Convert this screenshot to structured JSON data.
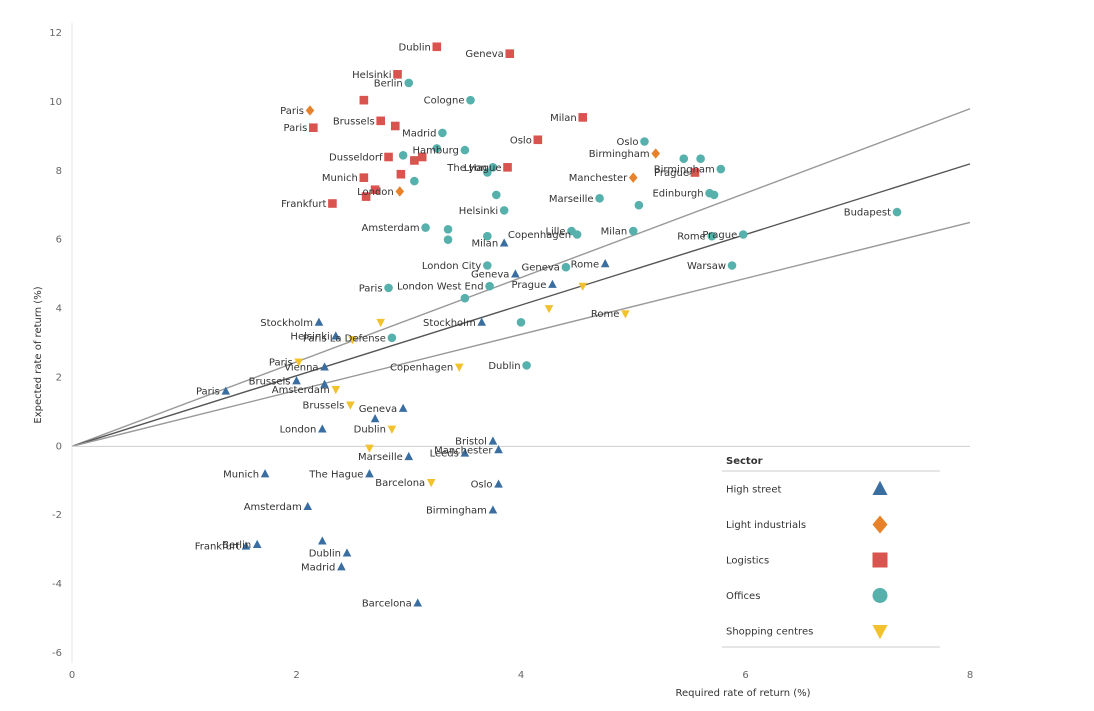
{
  "chart_data": {
    "type": "scatter",
    "title": "",
    "xlabel": "Required rate of return (%)",
    "ylabel": "Expected rate of return (%)",
    "xlim": [
      0,
      8
    ],
    "ylim": [
      -6,
      12
    ],
    "xticks": [
      "0",
      "2",
      "4",
      "6",
      "8"
    ],
    "yticks": [
      "12",
      "10",
      "8",
      "6",
      "4",
      "2",
      "0",
      "-2",
      "-4",
      "-6"
    ],
    "grid": false,
    "zero_line": true,
    "reference_lines": [
      {
        "from": [
          0,
          0
        ],
        "to": [
          8,
          9.8
        ],
        "color": "#999999"
      },
      {
        "from": [
          0,
          0
        ],
        "to": [
          8,
          8.2
        ],
        "color": "#555555"
      },
      {
        "from": [
          0,
          0
        ],
        "to": [
          8,
          6.5
        ],
        "color": "#999999"
      }
    ],
    "legend": {
      "title": "Sector",
      "position": "bottom-right",
      "entries": [
        {
          "label": "High street",
          "shape": "triangle",
          "color": "#3b6ea0"
        },
        {
          "label": "Light industrials",
          "shape": "diamond",
          "color": "#e8822a"
        },
        {
          "label": "Logistics",
          "shape": "square",
          "color": "#d9534f"
        },
        {
          "label": "Offices",
          "shape": "circle",
          "color": "#56b0ac"
        },
        {
          "label": "Shopping centres",
          "shape": "triangle-down",
          "color": "#f2c12e"
        }
      ]
    },
    "series": [
      {
        "name": "High street",
        "shape": "triangle",
        "color": "#3b6ea0",
        "points": [
          {
            "label": "Stockholm",
            "x": 2.2,
            "y": 3.6
          },
          {
            "label": "Helsinki",
            "x": 2.35,
            "y": 3.2
          },
          {
            "label": "Vienna",
            "x": 2.25,
            "y": 2.3
          },
          {
            "label": "Brussels",
            "x": 2.0,
            "y": 1.9
          },
          {
            "label": "",
            "x": 2.25,
            "y": 1.8
          },
          {
            "label": "Paris",
            "x": 1.37,
            "y": 1.6
          },
          {
            "label": "Geneva",
            "x": 2.95,
            "y": 1.1
          },
          {
            "label": "",
            "x": 2.7,
            "y": 0.8
          },
          {
            "label": "London",
            "x": 2.23,
            "y": 0.5
          },
          {
            "label": "Bristol",
            "x": 3.75,
            "y": 0.15
          },
          {
            "label": "Manchester",
            "x": 3.8,
            "y": -0.1
          },
          {
            "label": "Leeds",
            "x": 3.5,
            "y": -0.2
          },
          {
            "label": "Marseille",
            "x": 3.0,
            "y": -0.3
          },
          {
            "label": "The Hague",
            "x": 2.65,
            "y": -0.8
          },
          {
            "label": "Munich",
            "x": 1.72,
            "y": -0.8
          },
          {
            "label": "Oslo",
            "x": 3.8,
            "y": -1.1
          },
          {
            "label": "Birmingham",
            "x": 3.75,
            "y": -1.85
          },
          {
            "label": "Amsterdam",
            "x": 2.1,
            "y": -1.75
          },
          {
            "label": "Berlin",
            "x": 1.65,
            "y": -2.85
          },
          {
            "label": "Frankfurt",
            "x": 1.55,
            "y": -2.9
          },
          {
            "label": "",
            "x": 2.23,
            "y": -2.75
          },
          {
            "label": "Dublin",
            "x": 2.45,
            "y": -3.1
          },
          {
            "label": "Madrid",
            "x": 2.4,
            "y": -3.5
          },
          {
            "label": "Barcelona",
            "x": 3.08,
            "y": -4.55
          },
          {
            "label": "Stockholm",
            "x": 3.65,
            "y": 3.6
          },
          {
            "label": "Geneva",
            "x": 3.95,
            "y": 5.0
          },
          {
            "label": "Prague",
            "x": 4.28,
            "y": 4.7
          },
          {
            "label": "Rome",
            "x": 4.75,
            "y": 5.3
          },
          {
            "label": "Milan",
            "x": 3.85,
            "y": 5.9
          }
        ]
      },
      {
        "name": "Light industrials",
        "shape": "diamond",
        "color": "#e8822a",
        "points": [
          {
            "label": "Paris",
            "x": 2.12,
            "y": 9.75
          },
          {
            "label": "London",
            "x": 2.92,
            "y": 7.4
          },
          {
            "label": "Manchester",
            "x": 5.0,
            "y": 7.8
          },
          {
            "label": "Birmingham",
            "x": 5.2,
            "y": 8.5
          }
        ]
      },
      {
        "name": "Logistics",
        "shape": "square",
        "color": "#d9534f",
        "points": [
          {
            "label": "Dublin",
            "x": 3.25,
            "y": 11.6
          },
          {
            "label": "Geneva",
            "x": 3.9,
            "y": 11.4
          },
          {
            "label": "Helsinki",
            "x": 2.9,
            "y": 10.8
          },
          {
            "label": "",
            "x": 2.6,
            "y": 10.05
          },
          {
            "label": "Paris",
            "x": 2.15,
            "y": 9.25
          },
          {
            "label": "Brussels",
            "x": 2.75,
            "y": 9.45
          },
          {
            "label": "",
            "x": 2.88,
            "y": 9.3
          },
          {
            "label": "Milan",
            "x": 4.55,
            "y": 9.55
          },
          {
            "label": "Oslo",
            "x": 4.15,
            "y": 8.9
          },
          {
            "label": "Dusseldorf",
            "x": 2.82,
            "y": 8.4
          },
          {
            "label": "",
            "x": 3.05,
            "y": 8.3
          },
          {
            "label": "",
            "x": 3.12,
            "y": 8.4
          },
          {
            "label": "The Hague",
            "x": 3.88,
            "y": 8.1
          },
          {
            "label": "Munich",
            "x": 2.6,
            "y": 7.8
          },
          {
            "label": "",
            "x": 2.93,
            "y": 7.9
          },
          {
            "label": "",
            "x": 2.7,
            "y": 7.45
          },
          {
            "label": "",
            "x": 2.62,
            "y": 7.25
          },
          {
            "label": "Frankfurt",
            "x": 2.32,
            "y": 7.05
          },
          {
            "label": "Prague",
            "x": 5.55,
            "y": 7.95
          }
        ]
      },
      {
        "name": "Offices",
        "shape": "circle",
        "color": "#56b0ac",
        "points": [
          {
            "label": "Berlin",
            "x": 3.0,
            "y": 10.55
          },
          {
            "label": "Cologne",
            "x": 3.55,
            "y": 10.05
          },
          {
            "label": "Madrid",
            "x": 3.3,
            "y": 9.1
          },
          {
            "label": "",
            "x": 3.25,
            "y": 8.65
          },
          {
            "label": "Hamburg",
            "x": 3.5,
            "y": 8.6
          },
          {
            "label": "",
            "x": 2.95,
            "y": 8.45
          },
          {
            "label": "Lyon",
            "x": 3.75,
            "y": 8.1
          },
          {
            "label": "",
            "x": 3.7,
            "y": 7.95
          },
          {
            "label": "",
            "x": 3.05,
            "y": 7.7
          },
          {
            "label": "",
            "x": 3.78,
            "y": 7.3
          },
          {
            "label": "Helsinki",
            "x": 3.85,
            "y": 6.85
          },
          {
            "label": "Amsterdam",
            "x": 3.15,
            "y": 6.35
          },
          {
            "label": "",
            "x": 3.35,
            "y": 6.3
          },
          {
            "label": "",
            "x": 3.35,
            "y": 6.0
          },
          {
            "label": "",
            "x": 3.7,
            "y": 6.1
          },
          {
            "label": "London City",
            "x": 3.7,
            "y": 5.25
          },
          {
            "label": "London West End",
            "x": 3.72,
            "y": 4.65
          },
          {
            "label": "",
            "x": 3.5,
            "y": 4.3
          },
          {
            "label": "Paris",
            "x": 2.82,
            "y": 4.6
          },
          {
            "label": "Paris La Defense",
            "x": 2.85,
            "y": 3.15
          },
          {
            "label": "",
            "x": 4.0,
            "y": 3.6
          },
          {
            "label": "Dublin",
            "x": 4.05,
            "y": 2.35
          },
          {
            "label": "Geneva",
            "x": 4.4,
            "y": 5.2
          },
          {
            "label": "Lille",
            "x": 4.45,
            "y": 6.25
          },
          {
            "label": "Copenhagen",
            "x": 4.5,
            "y": 6.15
          },
          {
            "label": "Marseille",
            "x": 4.7,
            "y": 7.2
          },
          {
            "label": "",
            "x": 5.05,
            "y": 7.0
          },
          {
            "label": "Milan",
            "x": 5.0,
            "y": 6.25
          },
          {
            "label": "Oslo",
            "x": 5.1,
            "y": 8.85
          },
          {
            "label": "",
            "x": 5.45,
            "y": 8.35
          },
          {
            "label": "",
            "x": 5.6,
            "y": 8.35
          },
          {
            "label": "Birmingham",
            "x": 5.78,
            "y": 8.05
          },
          {
            "label": "Edinburgh",
            "x": 5.68,
            "y": 7.35
          },
          {
            "label": "",
            "x": 5.72,
            "y": 7.3
          },
          {
            "label": "Rome",
            "x": 5.7,
            "y": 6.1
          },
          {
            "label": "Prague",
            "x": 5.98,
            "y": 6.15
          },
          {
            "label": "Warsaw",
            "x": 5.88,
            "y": 5.25
          },
          {
            "label": "Budapest",
            "x": 7.35,
            "y": 6.8
          }
        ]
      },
      {
        "name": "Shopping centres",
        "shape": "triangle-down",
        "color": "#f2c12e",
        "points": [
          {
            "label": "",
            "x": 2.75,
            "y": 3.6
          },
          {
            "label": "",
            "x": 2.5,
            "y": 3.1
          },
          {
            "label": "Paris",
            "x": 2.02,
            "y": 2.45
          },
          {
            "label": "Amsterdam",
            "x": 2.35,
            "y": 1.65
          },
          {
            "label": "Copenhagen",
            "x": 3.45,
            "y": 2.3
          },
          {
            "label": "Brussels",
            "x": 2.48,
            "y": 1.2
          },
          {
            "label": "Dublin",
            "x": 2.85,
            "y": 0.5
          },
          {
            "label": "",
            "x": 2.65,
            "y": -0.05
          },
          {
            "label": "Barcelona",
            "x": 3.2,
            "y": -1.05
          },
          {
            "label": "",
            "x": 4.25,
            "y": 4.0
          },
          {
            "label": "",
            "x": 4.55,
            "y": 4.65
          },
          {
            "label": "Rome",
            "x": 4.93,
            "y": 3.85
          }
        ]
      }
    ]
  }
}
